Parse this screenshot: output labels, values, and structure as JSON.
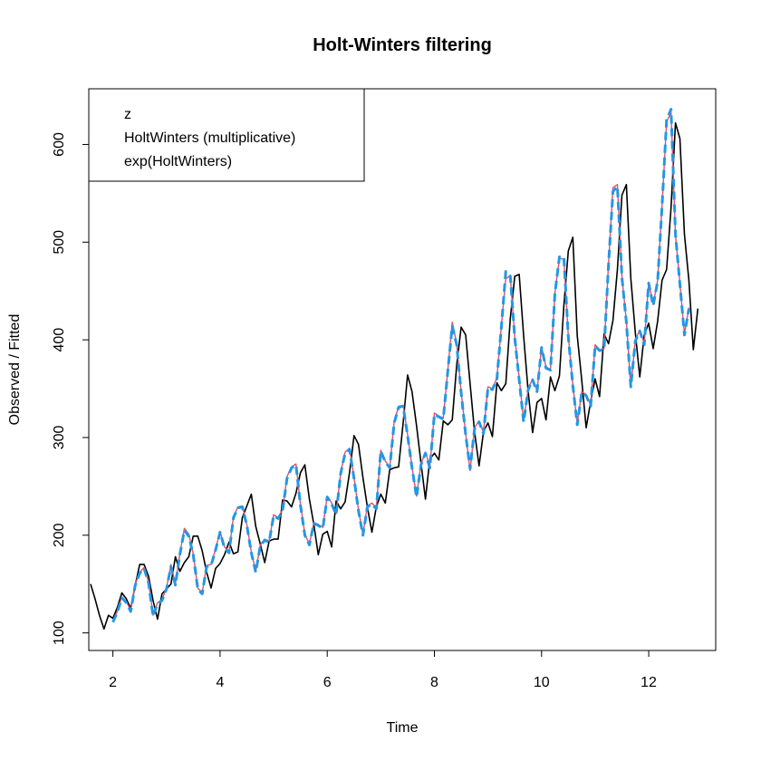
{
  "chart_data": {
    "type": "line",
    "title": "Holt-Winters filtering",
    "xlabel": "Time",
    "ylabel": "Observed / Fitted",
    "xlim": [
      1.55,
      13.25
    ],
    "ylim": [
      82,
      657
    ],
    "x_ticks": [
      2,
      4,
      6,
      8,
      10,
      12
    ],
    "y_ticks": [
      100,
      200,
      300,
      400,
      500,
      600
    ],
    "grid": false,
    "legend_position": "top-left",
    "legend": [
      "z",
      "HoltWinters (multiplicative)",
      "exp(HoltWinters)"
    ],
    "observed": {
      "name": "z",
      "color": "#000000",
      "x_start": 1.5833,
      "x_step": 0.08333,
      "values": [
        150,
        135,
        118,
        104,
        118,
        115,
        126,
        141,
        135,
        125,
        149,
        170,
        170,
        158,
        133,
        114,
        140,
        145,
        150,
        178,
        163,
        172,
        178,
        199,
        199,
        184,
        162,
        146,
        166,
        171,
        180,
        193,
        181,
        183,
        218,
        230,
        242,
        209,
        191,
        172,
        194,
        196,
        196,
        236,
        235,
        229,
        243,
        264,
        272,
        237,
        211,
        180,
        201,
        204,
        188,
        235,
        227,
        234,
        264,
        302,
        293,
        259,
        229,
        203,
        229,
        242,
        233,
        267,
        269,
        270,
        315,
        364,
        347,
        312,
        274,
        237,
        278,
        284,
        277,
        317,
        313,
        318,
        374,
        413,
        405,
        355,
        306,
        271,
        306,
        315,
        301,
        356,
        348,
        355,
        422,
        465,
        467,
        404,
        347,
        305,
        336,
        340,
        318,
        362,
        348,
        363,
        435,
        491,
        505,
        404,
        359,
        310,
        337,
        360,
        342,
        406,
        396,
        420,
        472,
        548,
        559,
        463,
        407,
        362,
        405,
        417,
        391,
        419,
        461,
        472,
        535,
        622,
        606,
        508,
        461,
        390,
        432
      ]
    },
    "series": [
      {
        "name": "HoltWinters (multiplicative)",
        "color": "#DF536B",
        "style": "solid",
        "x_start": 2.0,
        "x_step": 0.08333,
        "values": [
          112,
          122,
          137,
          132,
          123,
          150,
          162,
          167,
          152,
          118,
          131,
          134,
          146,
          170,
          150,
          181,
          207,
          201,
          181,
          146,
          141,
          169,
          170,
          186,
          204,
          188,
          183,
          219,
          229,
          230,
          211,
          183,
          163,
          190,
          196,
          194,
          221,
          218,
          226,
          260,
          270,
          273,
          232,
          201,
          191,
          213,
          211,
          208,
          240,
          233,
          222,
          264,
          285,
          289,
          259,
          226,
          201,
          230,
          233,
          228,
          287,
          276,
          270,
          316,
          332,
          333,
          303,
          270,
          240,
          273,
          285,
          270,
          325,
          322,
          320,
          369,
          418,
          396,
          347,
          304,
          266,
          310,
          317,
          305,
          352,
          350,
          361,
          414,
          463,
          465,
          403,
          361,
          317,
          350,
          360,
          348,
          393,
          372,
          370,
          448,
          483,
          483,
          404,
          354,
          314,
          347,
          344,
          333,
          395,
          390,
          391,
          478,
          556,
          559,
          465,
          419,
          351,
          400,
          410,
          396,
          459,
          436,
          461,
          538,
          623,
          633,
          507,
          458,
          406,
          433
        ]
      },
      {
        "name": "exp(HoltWinters)",
        "color": "#2297E6",
        "style": "dashed",
        "x_start": 2.0,
        "x_step": 0.08333,
        "values": [
          111,
          121,
          136,
          131,
          122,
          149,
          161,
          166,
          151,
          117,
          130,
          133,
          145,
          168,
          149,
          180,
          205,
          199,
          180,
          145,
          140,
          168,
          169,
          185,
          203,
          187,
          182,
          218,
          228,
          229,
          210,
          182,
          162,
          189,
          195,
          193,
          220,
          217,
          225,
          258,
          269,
          272,
          231,
          200,
          190,
          212,
          210,
          207,
          239,
          232,
          221,
          263,
          284,
          288,
          258,
          225,
          200,
          229,
          232,
          227,
          286,
          275,
          269,
          315,
          331,
          332,
          302,
          269,
          239,
          272,
          284,
          269,
          324,
          321,
          319,
          368,
          414,
          395,
          346,
          303,
          268,
          309,
          316,
          304,
          351,
          349,
          360,
          413,
          470,
          465,
          402,
          359,
          316,
          349,
          359,
          347,
          392,
          371,
          369,
          447,
          485,
          485,
          403,
          353,
          313,
          346,
          343,
          332,
          394,
          389,
          390,
          477,
          552,
          557,
          464,
          418,
          352,
          399,
          409,
          395,
          458,
          435,
          460,
          537,
          625,
          636,
          508,
          457,
          405,
          432
        ]
      }
    ]
  }
}
